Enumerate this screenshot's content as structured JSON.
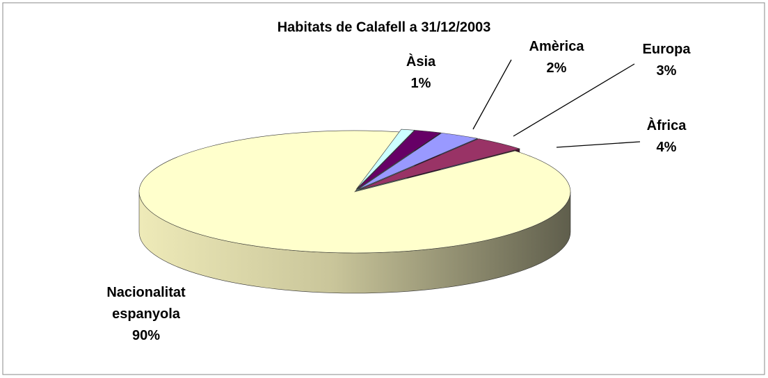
{
  "chart_data": {
    "type": "pie",
    "title": "Habitats de Calafell a 31/12/2003",
    "categories": [
      "Àsia",
      "Amèrica",
      "Europa",
      "Àfrica",
      "Nacionalitat espanyola"
    ],
    "values": [
      1,
      2,
      3,
      4,
      90
    ],
    "value_labels": [
      "1%",
      "2%",
      "3%",
      "4%",
      "90%"
    ],
    "colors": [
      "#CCFFFF",
      "#660066",
      "#9999FF",
      "#993366",
      "#FFFFCC"
    ]
  }
}
